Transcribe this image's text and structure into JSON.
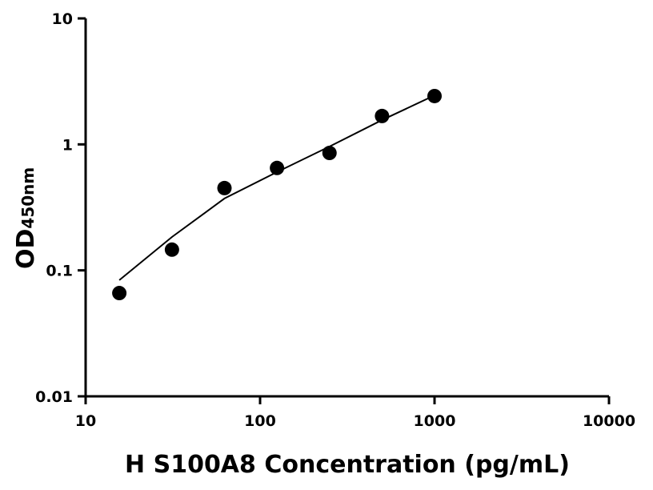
{
  "chart_data": {
    "type": "scatter",
    "x_label": "H S100A8 Concentration (pg/mL)",
    "y_label": "OD",
    "y_label_sub": "450nm",
    "x": [
      15.6,
      31.25,
      62.5,
      125,
      250,
      500,
      1000
    ],
    "values": [
      0.066,
      0.146,
      0.45,
      0.65,
      0.855,
      1.68,
      2.42
    ],
    "color": "#000000",
    "fit": {
      "x": [
        15.6,
        31.25,
        62.5,
        125,
        250,
        500,
        1000
      ],
      "values": [
        0.0836,
        0.184,
        0.372,
        0.603,
        0.962,
        1.56,
        2.45
      ],
      "color": "#000000"
    },
    "xlim": [
      10,
      10000
    ],
    "ylim": [
      0.01,
      10
    ],
    "xticks": [
      10,
      100,
      1000,
      10000
    ],
    "yticks": [
      0.01,
      0.1,
      1,
      10
    ],
    "xlog": true,
    "ylog": true
  }
}
